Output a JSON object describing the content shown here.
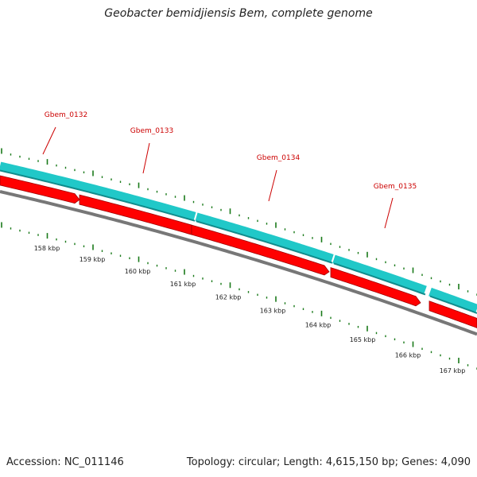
{
  "title": "Geobacter bemidjiensis Bem, complete genome",
  "footer": {
    "accession": "Accession: NC_011146",
    "summary": "Topology: circular; Length: 4,615,150 bp; Genes: 4,090"
  },
  "colors": {
    "feature_track": "#20c8c8",
    "feature_track_dark": "#108c8c",
    "cds_track": "#ff0000",
    "cds_track_dark": "#a00000",
    "backbone": "#777777",
    "tick": "#1a7a1a",
    "gene_label": "#cc0000"
  },
  "genes": [
    {
      "name": "Gbem_0132"
    },
    {
      "name": "Gbem_0133"
    },
    {
      "name": "Gbem_0134"
    },
    {
      "name": "Gbem_0135"
    }
  ],
  "kbp_labels": [
    "158 kbp",
    "159 kbp",
    "160 kbp",
    "161 kbp",
    "162 kbp",
    "163 kbp",
    "164 kbp",
    "165 kbp",
    "166 kbp",
    "167 kbp"
  ]
}
